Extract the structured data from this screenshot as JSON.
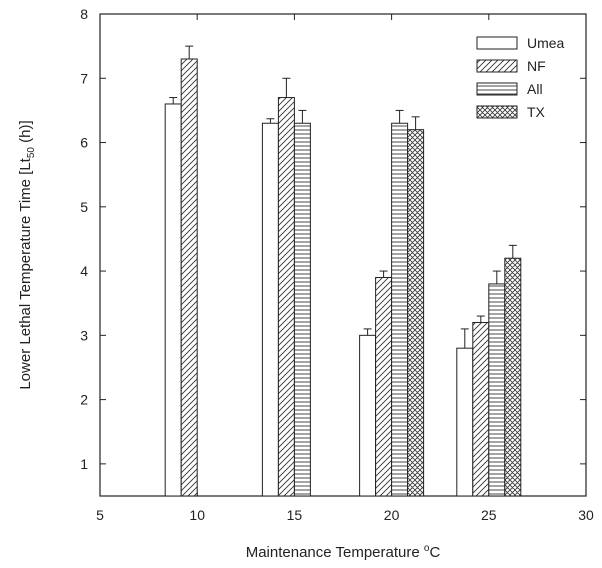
{
  "chart_data": {
    "type": "bar",
    "x_axis": {
      "label_main": "Maintenance Temperature ",
      "label_sup": "o",
      "label_end": "C",
      "range": [
        5,
        30
      ],
      "ticks": [
        5,
        10,
        15,
        20,
        25,
        30
      ],
      "tick_labels": [
        "5",
        "10",
        "15",
        "20",
        "25",
        "30"
      ]
    },
    "y_axis": {
      "label_main": "Lower Lethal Temperature Time [Lt",
      "label_sub": "50",
      "label_end": " (h)]",
      "range": [
        0.5,
        8
      ],
      "ticks": [
        1,
        2,
        3,
        4,
        5,
        6,
        7,
        8
      ],
      "tick_labels": [
        "1",
        "2",
        "3",
        "4",
        "5",
        "6",
        "7",
        "8"
      ]
    },
    "categories": [
      10,
      15,
      20,
      25
    ],
    "series": [
      {
        "name": "Umea",
        "pattern": "open",
        "values": [
          6.6,
          6.3,
          3.0,
          2.8
        ],
        "errors": [
          0.1,
          0.07,
          0.1,
          0.3
        ]
      },
      {
        "name": "NF",
        "pattern": "diagonal",
        "values": [
          7.3,
          6.7,
          3.9,
          3.2
        ],
        "errors": [
          0.2,
          0.3,
          0.1,
          0.1
        ]
      },
      {
        "name": "All",
        "pattern": "horizontal",
        "values": [
          null,
          6.3,
          6.3,
          3.8
        ],
        "errors": [
          null,
          0.2,
          0.2,
          0.2
        ]
      },
      {
        "name": "TX",
        "pattern": "crosshatch",
        "values": [
          null,
          null,
          6.2,
          4.2
        ],
        "errors": [
          null,
          null,
          0.2,
          0.2
        ]
      }
    ],
    "legend_position": "top-right",
    "grid": false,
    "colors": {
      "stroke": "#222222",
      "fill": "#ffffff"
    }
  }
}
